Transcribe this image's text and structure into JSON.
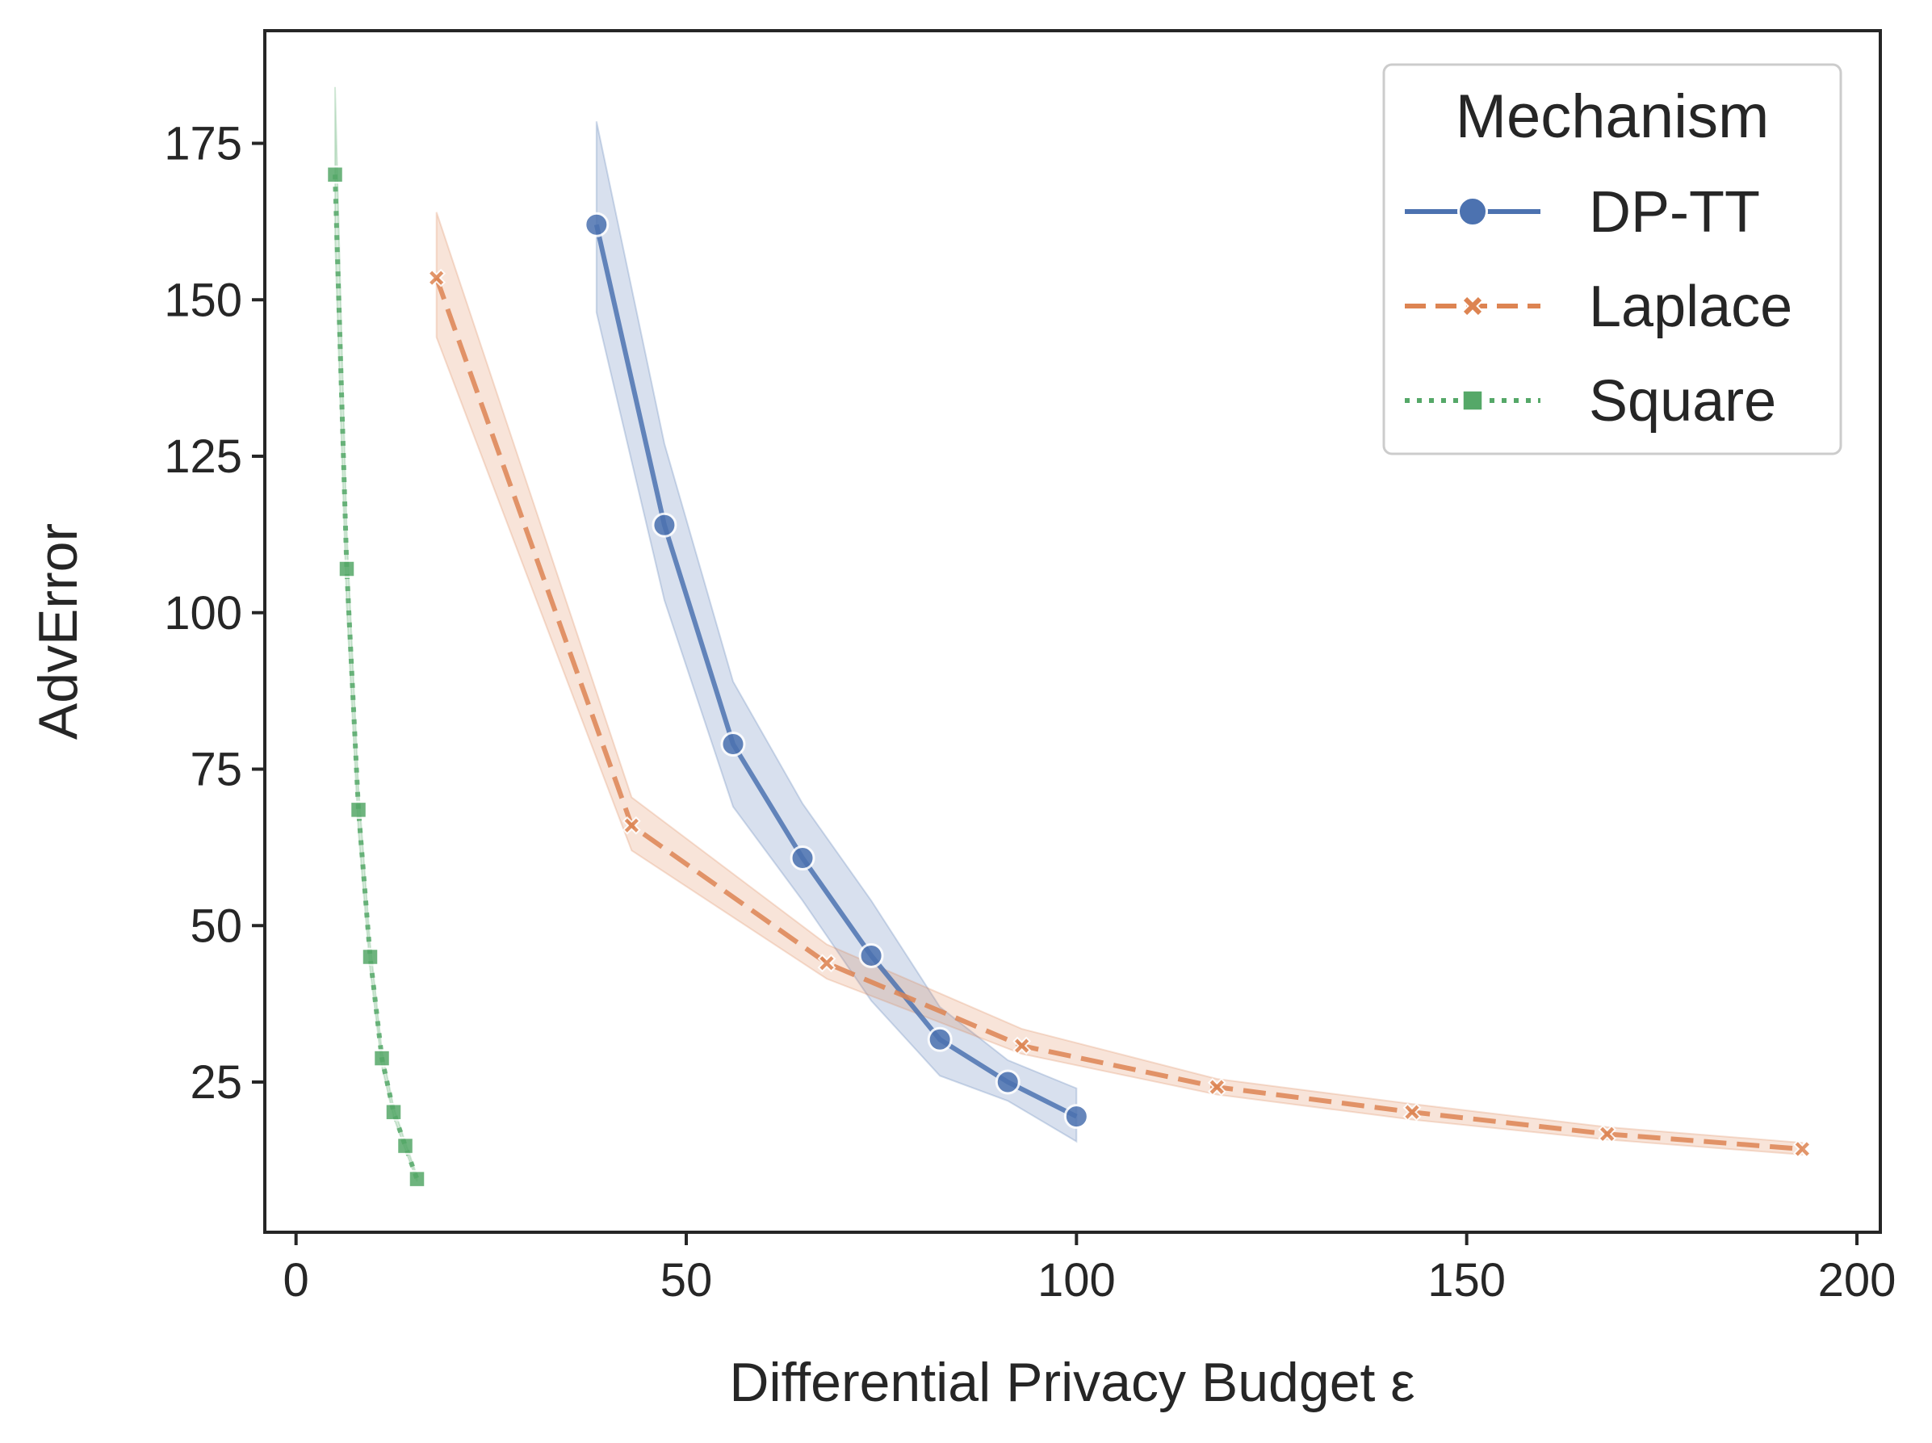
{
  "chart_data": {
    "type": "line",
    "xlabel": "Differential Privacy Budget ε",
    "ylabel": "AdvError",
    "xlim": [
      -4,
      203
    ],
    "ylim": [
      1,
      193
    ],
    "xticks": [
      0,
      50,
      100,
      150,
      200
    ],
    "yticks": [
      25,
      50,
      75,
      100,
      125,
      150,
      175
    ],
    "grid": false,
    "legend": {
      "title": "Mechanism",
      "placement": "top-right"
    },
    "series": [
      {
        "name": "DP-TT",
        "color": "#4c72b0",
        "line_style": "solid",
        "marker": "circle",
        "x": [
          38.5,
          47.2,
          56.0,
          64.9,
          73.7,
          82.5,
          91.2,
          100.0
        ],
        "y": [
          162,
          114,
          79,
          60.8,
          45.2,
          31.8,
          25,
          19.5
        ],
        "ci_lower": [
          148,
          102,
          69,
          54,
          38,
          26,
          22,
          15.5
        ],
        "ci_upper": [
          178.5,
          127,
          89,
          69.5,
          54,
          37,
          28.5,
          24
        ]
      },
      {
        "name": "Laplace",
        "color": "#dd8452",
        "line_style": "dashed",
        "marker": "x",
        "x": [
          18.0,
          43.0,
          68.0,
          93.0,
          118.0,
          143.0,
          168.0,
          193.0
        ],
        "y": [
          153.5,
          66,
          44,
          30.8,
          24.2,
          20.2,
          16.7,
          14.3
        ],
        "ci_lower": [
          144,
          62,
          41.5,
          29.5,
          23,
          19,
          15.8,
          13.4
        ],
        "ci_upper": [
          164,
          70.5,
          47,
          33.5,
          25.5,
          21.5,
          17.8,
          15.3
        ]
      },
      {
        "name": "Square",
        "color": "#55a868",
        "line_style": "dotted",
        "marker": "square",
        "x": [
          5.0,
          6.5,
          8.0,
          9.5,
          11.0,
          12.5,
          14.0,
          15.5
        ],
        "y": [
          170,
          107,
          68.5,
          45,
          28.8,
          20.2,
          14.8,
          9.5
        ],
        "ci_lower": [
          160,
          101,
          65,
          43,
          27.5,
          19.4,
          14.2,
          9.1
        ],
        "ci_upper": [
          184,
          113,
          72,
          47,
          30,
          21,
          15.4,
          10
        ]
      }
    ]
  }
}
